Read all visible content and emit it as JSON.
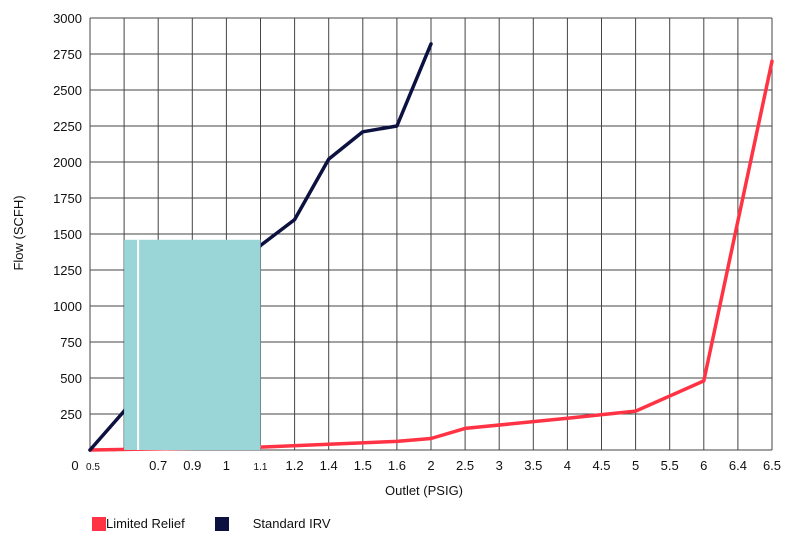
{
  "chart_data": {
    "type": "line",
    "x_tick_labels": [
      "0",
      "0.5",
      "0.7",
      "0.9",
      "1",
      "1.1",
      "1.2",
      "1.4",
      "1.5",
      "1.6",
      "2",
      "2.5",
      "3",
      "3.5",
      "4",
      "4.5",
      "5",
      "5.5",
      "6",
      "6.4",
      "6.5"
    ],
    "y_ticks": [
      250,
      500,
      750,
      1000,
      1250,
      1500,
      1750,
      2000,
      2250,
      2500,
      2750,
      3000
    ],
    "ylim": [
      0,
      3000
    ],
    "xlabel": "Outlet (PSIG)",
    "ylabel": "Flow (SCFH)",
    "grid": true,
    "legend_position": "bottom-left",
    "series": [
      {
        "name": "Limited Relief",
        "color": "#ff3344",
        "points": [
          {
            "x": "0",
            "y": 0
          },
          {
            "x": "1.1",
            "y": 20
          },
          {
            "x": "1.4",
            "y": 40
          },
          {
            "x": "1.6",
            "y": 60
          },
          {
            "x": "2",
            "y": 80
          },
          {
            "x": "2.5",
            "y": 150
          },
          {
            "x": "4",
            "y": 220
          },
          {
            "x": "5",
            "y": 270
          },
          {
            "x": "6",
            "y": 480
          },
          {
            "x": "6.5",
            "y": 2700
          }
        ]
      },
      {
        "name": "Standard IRV",
        "color": "#0d1140",
        "points": [
          {
            "x": "0",
            "y": 0
          },
          {
            "x": "0.5",
            "y": 270
          },
          {
            "x": "1.1",
            "y": 1420
          },
          {
            "x": "1.2",
            "y": 1600
          },
          {
            "x": "1.4",
            "y": 2020
          },
          {
            "x": "1.5",
            "y": 2210
          },
          {
            "x": "1.6",
            "y": 2250
          },
          {
            "x": "2",
            "y": 2820
          }
        ]
      }
    ],
    "overlay": {
      "color": "#9ad6d8",
      "x_from": "0.5",
      "x_to": "1.1",
      "y_top": 1460
    }
  }
}
